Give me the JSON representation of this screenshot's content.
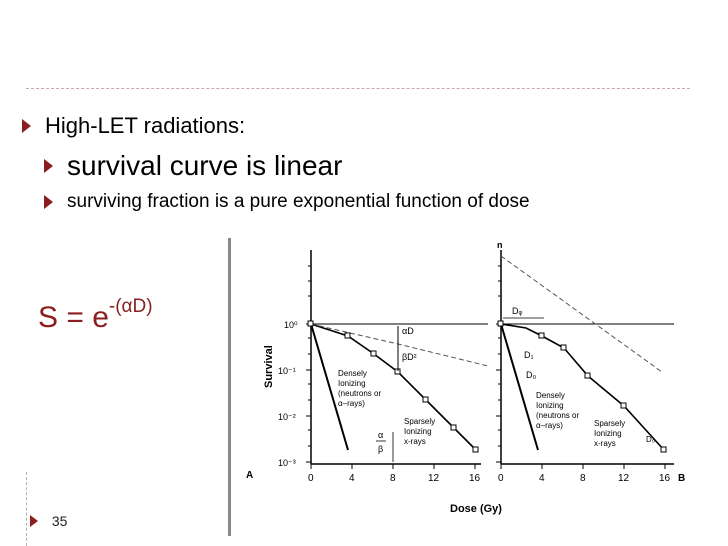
{
  "bullets": {
    "level1": "High-LET radiations:",
    "level2a": "survival curve is linear",
    "level2b": "surviving fraction is a pure exponential function of dose"
  },
  "formula": {
    "base": "S = e",
    "exponent": "-(αD)"
  },
  "page_number": "35",
  "figure": {
    "y_axis_label": "Survival",
    "x_axis_label": "Dose  (Gy)",
    "y_ticks": [
      "10⁰",
      "10⁻¹",
      "10⁻²",
      "10⁻³"
    ],
    "x_ticks_a": [
      "0",
      "4",
      "8",
      "12",
      "16"
    ],
    "x_ticks_b": [
      "0",
      "4",
      "8",
      "12",
      "16"
    ],
    "panel_a_letter": "A",
    "panel_b_letter": "B",
    "label_n": "n",
    "label_dq": "Dᵩ",
    "label_d1": "D₁",
    "label_d0": "D₀",
    "label_alpha_d": "αD",
    "label_beta_d2": "βD²",
    "label_alpha": "α",
    "label_beta": "β",
    "densely_a": [
      "Densely",
      "Ionizing",
      "(neutrons or",
      "α–rays)"
    ],
    "sparsely_a": [
      "Sparsely",
      "Ionizing",
      "x-rays"
    ],
    "densely_b": [
      "Densely",
      "Ionizing",
      "(neutrons or",
      "α–rays)"
    ],
    "sparsely_b": [
      "Sparsely",
      "Ionizing",
      "x-rays"
    ],
    "label_d0_small": "D₀"
  }
}
